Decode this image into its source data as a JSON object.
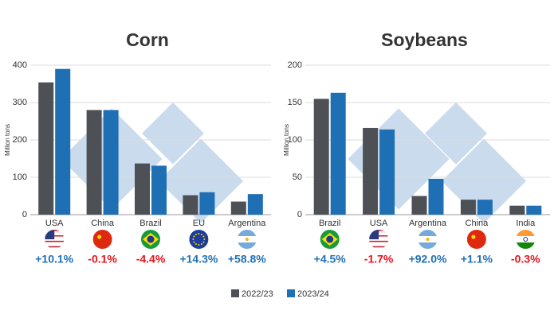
{
  "chart_data": [
    {
      "type": "bar",
      "title": "Corn",
      "y_label": "Million tons",
      "categories": [
        "USA",
        "China",
        "Brazil",
        "EU",
        "Argentina"
      ],
      "series": [
        {
          "name": "2022/23",
          "color": "#4d5055",
          "values": [
            354,
            280,
            137,
            52,
            35
          ]
        },
        {
          "name": "2023/24",
          "color": "#1f6fb5",
          "values": [
            390,
            280,
            131,
            60,
            55
          ]
        }
      ],
      "changes": [
        {
          "value": 10.1,
          "label": "+10.1%"
        },
        {
          "value": -0.1,
          "label": "-0.1%"
        },
        {
          "value": -4.4,
          "label": "-4.4%"
        },
        {
          "value": 14.3,
          "label": "+14.3%"
        },
        {
          "value": 58.8,
          "label": "+58.8%"
        }
      ],
      "positive_color": "#1f6fb5",
      "negative_color": "#e8111b",
      "ylim": [
        0,
        400
      ],
      "yticks": [
        0,
        100,
        200,
        300,
        400
      ],
      "grid": true
    },
    {
      "type": "bar",
      "title": "Soybeans",
      "y_label": "Million tons",
      "categories": [
        "Brazil",
        "USA",
        "Argentina",
        "China",
        "India"
      ],
      "series": [
        {
          "color": "#4d5055",
          "values": [
            155,
            116,
            25,
            20,
            12
          ]
        },
        {
          "color": "#1f6fb5",
          "values": [
            163,
            114,
            48,
            20,
            12
          ]
        }
      ],
      "changes": [
        {
          "value": 4.5,
          "label": "+4.5%"
        },
        {
          "value": -1.7,
          "label": "-1.7%"
        },
        {
          "value": 92.0,
          "label": "+92.0%"
        },
        {
          "value": 1.1,
          "label": "+1.1%"
        },
        {
          "value": -0.3,
          "label": "-0.3%"
        }
      ],
      "positive_color": "#1f6fb5",
      "negative_color": "#e8111b",
      "ylim": [
        0,
        200
      ],
      "yticks": [
        0,
        50,
        100,
        150,
        200
      ],
      "grid": true
    }
  ]
}
